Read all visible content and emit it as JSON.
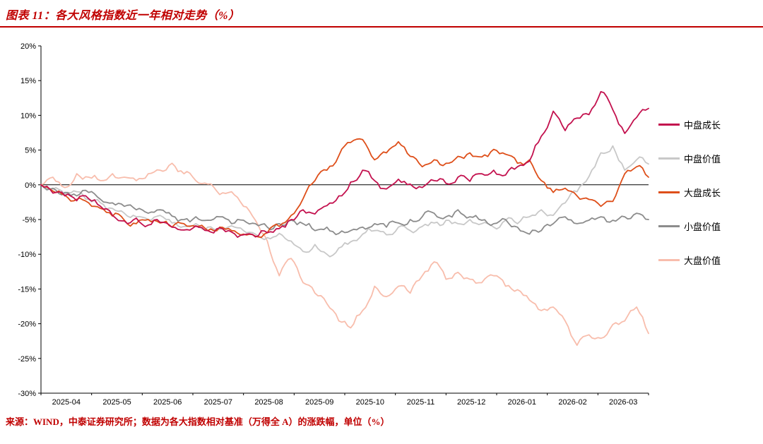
{
  "header": {
    "title": "图表 11：各大风格指数近一年相对走势（%）"
  },
  "footer": {
    "source": "来源：WIND，中泰证券研究所；数据为各大指数相对基准（万得全 A）的涨跌幅，单位（%）"
  },
  "colors": {
    "accent_red": "#C00000",
    "mid_growth": "#C3114E",
    "mid_value": "#C8C8C8",
    "large_growth": "#DE4F1A",
    "small_value": "#8C8C8C",
    "large_value": "#F8BDAC"
  },
  "chart_data": {
    "type": "line",
    "title": "各大风格指数近一年相对走势（%）",
    "xlabel": "",
    "ylabel": "",
    "ylim": [
      -30,
      20
    ],
    "y_tick_step": 5,
    "y_tick_labels": [
      "-30%",
      "-25%",
      "-20%",
      "-15%",
      "-10%",
      "-5%",
      "0%",
      "5%",
      "10%",
      "15%",
      "20%"
    ],
    "x_tick_labels": [
      "2025-04",
      "2025-05",
      "2025-06",
      "2025-07",
      "2025-08",
      "2025-09",
      "2025-10",
      "2025-11",
      "2025-12",
      "2026-01",
      "2026-02",
      "2026-03"
    ],
    "grid": false,
    "zero_line": true,
    "legend_position": "right",
    "z_order": [
      4,
      1,
      3,
      2,
      0
    ],
    "series": [
      {
        "name": "中盘成长",
        "color": "#C3114E",
        "values": [
          0,
          -1.2,
          -1.6,
          -2.3,
          -2.0,
          -3.1,
          -4.4,
          -5.2,
          -4.8,
          -5.8,
          -5.4,
          -6.1,
          -6.5,
          -5.9,
          -6.6,
          -6.2,
          -6.8,
          -7.2,
          -7.5,
          -6.9,
          -6.3,
          -5.0,
          -3.6,
          -4.2,
          -3.0,
          -1.6,
          0.4,
          2.1,
          0.6,
          -0.6,
          0.8,
          0.1,
          -0.4,
          0.6,
          0.2,
          1.1,
          0.5,
          1.6,
          2.1,
          1.4,
          2.6,
          3.4,
          7.0,
          10.6,
          7.8,
          9.6,
          10.1,
          13.4,
          10.8,
          7.4,
          9.7,
          11.0
        ]
      },
      {
        "name": "中盘价值",
        "color": "#C8C8C8",
        "values": [
          0,
          -0.6,
          -1.4,
          -1.0,
          -2.1,
          -2.6,
          -3.4,
          -4.1,
          -4.6,
          -5.0,
          -4.4,
          -5.5,
          -6.0,
          -5.6,
          -6.1,
          -6.4,
          -5.9,
          -6.6,
          -7.1,
          -7.6,
          -7.0,
          -8.1,
          -9.6,
          -8.6,
          -10.0,
          -9.1,
          -8.2,
          -7.1,
          -6.6,
          -7.2,
          -6.1,
          -6.6,
          -6.0,
          -5.5,
          -5.1,
          -5.6,
          -5.0,
          -5.6,
          -6.1,
          -5.1,
          -5.6,
          -4.6,
          -3.6,
          -4.4,
          -2.6,
          -1.0,
          1.2,
          4.6,
          5.6,
          2.1,
          3.6,
          3.0
        ]
      },
      {
        "name": "大盘成长",
        "color": "#DE4F1A",
        "values": [
          0,
          -0.9,
          -1.5,
          -2.1,
          -2.6,
          -3.4,
          -4.5,
          -5.1,
          -5.6,
          -5.0,
          -5.5,
          -6.1,
          -5.6,
          -6.0,
          -6.6,
          -6.1,
          -6.6,
          -7.1,
          -7.4,
          -6.9,
          -6.0,
          -4.4,
          -2.0,
          0.6,
          2.1,
          4.2,
          6.1,
          6.5,
          3.6,
          4.6,
          6.2,
          4.1,
          2.6,
          3.6,
          3.1,
          4.1,
          4.6,
          4.0,
          5.1,
          4.4,
          3.1,
          3.6,
          0.6,
          -1.1,
          -0.5,
          -1.6,
          -2.1,
          -3.1,
          -2.4,
          1.6,
          2.6,
          1.1
        ]
      },
      {
        "name": "小盘价值",
        "color": "#8C8C8C",
        "values": [
          0,
          -0.5,
          -1.1,
          -1.6,
          -1.1,
          -2.1,
          -2.6,
          -3.1,
          -3.6,
          -4.1,
          -3.6,
          -4.5,
          -5.0,
          -4.6,
          -5.1,
          -4.6,
          -5.6,
          -5.1,
          -5.6,
          -6.1,
          -5.6,
          -5.1,
          -5.6,
          -6.6,
          -6.1,
          -7.0,
          -6.6,
          -6.1,
          -5.6,
          -6.1,
          -5.5,
          -5.0,
          -4.6,
          -4.1,
          -4.6,
          -3.6,
          -4.6,
          -5.1,
          -5.6,
          -5.0,
          -6.1,
          -7.1,
          -6.6,
          -5.6,
          -4.6,
          -5.6,
          -5.1,
          -4.6,
          -5.1,
          -4.6,
          -4.1,
          -5.0
        ]
      },
      {
        "name": "大盘价值",
        "color": "#F8BDAC",
        "values": [
          0,
          1.1,
          -0.4,
          1.6,
          1.1,
          0.6,
          1.6,
          1.1,
          0.6,
          1.6,
          2.1,
          3.1,
          1.6,
          0.6,
          0.1,
          -1.4,
          -1.0,
          -3.1,
          -5.1,
          -8.1,
          -13.1,
          -10.6,
          -14.1,
          -15.6,
          -17.1,
          -19.6,
          -20.6,
          -18.1,
          -14.6,
          -16.1,
          -14.6,
          -15.6,
          -13.1,
          -11.1,
          -13.6,
          -12.6,
          -13.6,
          -14.1,
          -13.1,
          -14.6,
          -15.1,
          -16.6,
          -18.1,
          -17.6,
          -19.6,
          -23.1,
          -21.6,
          -22.1,
          -20.1,
          -19.6,
          -17.6,
          -21.4
        ]
      }
    ]
  }
}
